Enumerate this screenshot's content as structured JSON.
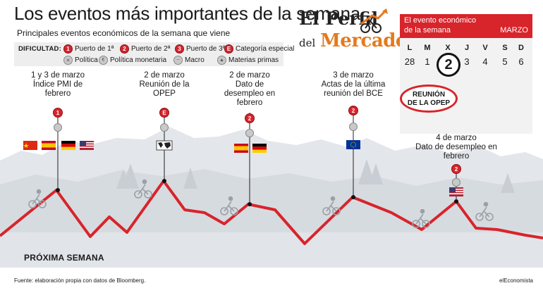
{
  "header": {
    "title": "Los eventos más importantes de la semana",
    "subtitle": "Principales eventos económicos de la semana que viene"
  },
  "legend": {
    "title": "DIFICULTAD:",
    "items": [
      {
        "badge": "1",
        "label": "Puerto de 1ª",
        "type": "red"
      },
      {
        "badge": "2",
        "label": "Puerto de 2ª",
        "type": "red"
      },
      {
        "badge": "3",
        "label": "Puerto de 3ª",
        "type": "red"
      },
      {
        "badge": "E",
        "label": "Categoría especial",
        "type": "red"
      },
      {
        "icon": "politica-icon",
        "label": "Política",
        "type": "gray"
      },
      {
        "icon": "politica-monetaria-icon",
        "label": "Política monetaria",
        "type": "gray"
      },
      {
        "icon": "macro-icon",
        "label": "Macro",
        "type": "gray"
      },
      {
        "icon": "materias-primas-icon",
        "label": "Materias primas",
        "type": "gray"
      }
    ]
  },
  "brand": {
    "line1": "El Perfil",
    "line2": "del",
    "line3": "Mercado",
    "accent": "#e37a1f"
  },
  "calendar": {
    "line1": "El evento económico",
    "line2": "de la semana",
    "month": "MARZO",
    "days": [
      "L",
      "M",
      "X",
      "J",
      "V",
      "S",
      "D"
    ],
    "numbers": [
      "28",
      "1",
      "2",
      "3",
      "4",
      "5",
      "6"
    ],
    "highlight": "2",
    "event_line1": "REUNIÓN",
    "event_line2": "DE LA OPEP",
    "accent": "#d8242b"
  },
  "events": [
    {
      "lines": [
        "1 y 3 de marzo",
        "Índice PMI de",
        "febrero"
      ],
      "badge": "1",
      "flags": [
        "china-flag",
        "spain-flag",
        "germany-flag",
        "usa-flag"
      ]
    },
    {
      "lines": [
        "2 de marzo",
        "Reunión de la",
        "OPEP"
      ],
      "badge": "E",
      "flags": [
        "world-map-flag"
      ]
    },
    {
      "lines": [
        "2 de marzo",
        "Dato de",
        "desempleo en",
        "febrero"
      ],
      "badge": "2",
      "flags": [
        "spain-flag",
        "germany-flag"
      ]
    },
    {
      "lines": [
        "3 de marzo",
        "Actas de la última",
        "reunión del BCE"
      ],
      "badge": "2",
      "flags": [
        "eu-flag"
      ]
    },
    {
      "lines": [
        "4 de marzo",
        "Dato de desempleo en",
        "febrero"
      ],
      "badge": "2",
      "flags": [
        "usa-flag"
      ]
    }
  ],
  "profile_label": "PRÓXIMA SEMANA",
  "footer": {
    "source": "Fuente: elaboración propia con datos de Bloomberg.",
    "credit": "elEconomista"
  },
  "colors": {
    "route": "#d8242b",
    "mountains": "#dfe3e8"
  }
}
